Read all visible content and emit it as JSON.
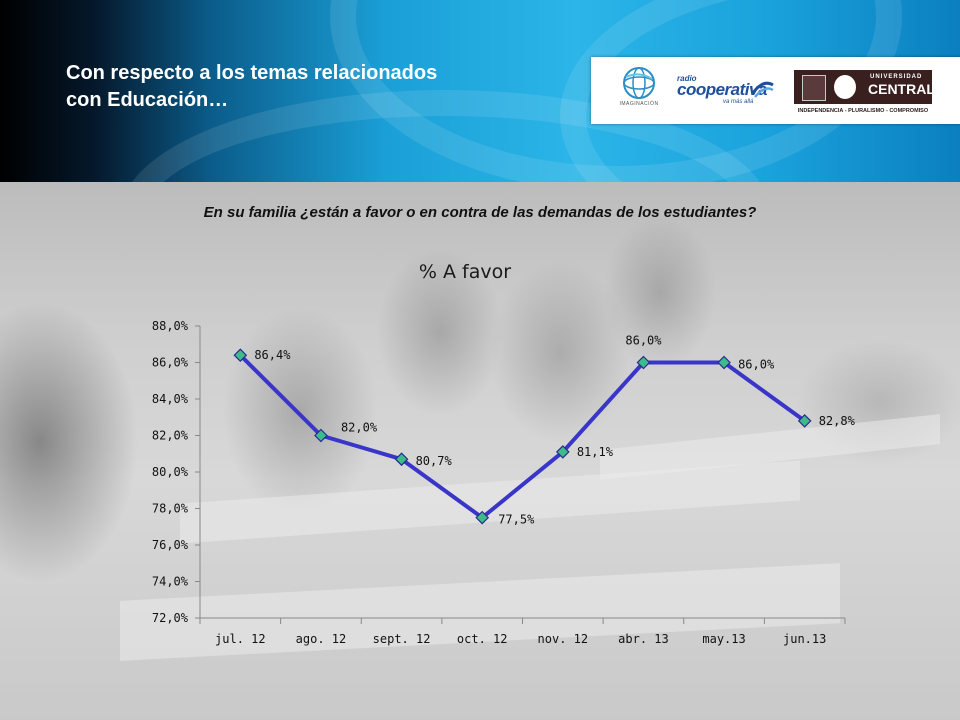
{
  "header": {
    "title_line1": "Con respecto a los temas relacionados",
    "title_line2": "con Educación…",
    "logos": {
      "imaginacion": "IMAGINACIÓN",
      "cooperativa_radio": "radio",
      "cooperativa_name": "cooperativa",
      "cooperativa_tag": "va más allá",
      "central_word1": "UNIVERSIDAD",
      "central_word2": "CENTRAL",
      "central_motto": "INDEPENDENCIA - PLURALISMO - COMPROMISO"
    }
  },
  "question": "En su familia ¿están a favor o en contra de las demandas de los estudiantes?",
  "chart_data": {
    "type": "line",
    "title": "% A favor",
    "categories": [
      "jul. 12",
      "ago. 12",
      "sept. 12",
      "oct. 12",
      "nov. 12",
      "abr. 13",
      "may.13",
      "jun.13"
    ],
    "series": [
      {
        "values": [
          86.4,
          82.0,
          80.7,
          77.5,
          81.1,
          86.0,
          86.0,
          82.8
        ],
        "labels": [
          "86,4%",
          "82,0%",
          "80,7%",
          "77,5%",
          "81,1%",
          "86,0%",
          "86,0%",
          "82,8%"
        ]
      }
    ],
    "ylim": [
      72,
      88
    ],
    "yticks": [
      88,
      86,
      84,
      82,
      80,
      78,
      76,
      74,
      72
    ],
    "ytick_labels": [
      "88,0%",
      "86,0%",
      "84,0%",
      "82,0%",
      "80,0%",
      "78,0%",
      "76,0%",
      "74,0%",
      "72,0%"
    ],
    "colors": {
      "line": "#3a35c9",
      "marker_fill": "#3dbb8a",
      "marker_stroke": "#2a2a8a",
      "axis": "#888888"
    },
    "grid": false,
    "legend": "none"
  }
}
